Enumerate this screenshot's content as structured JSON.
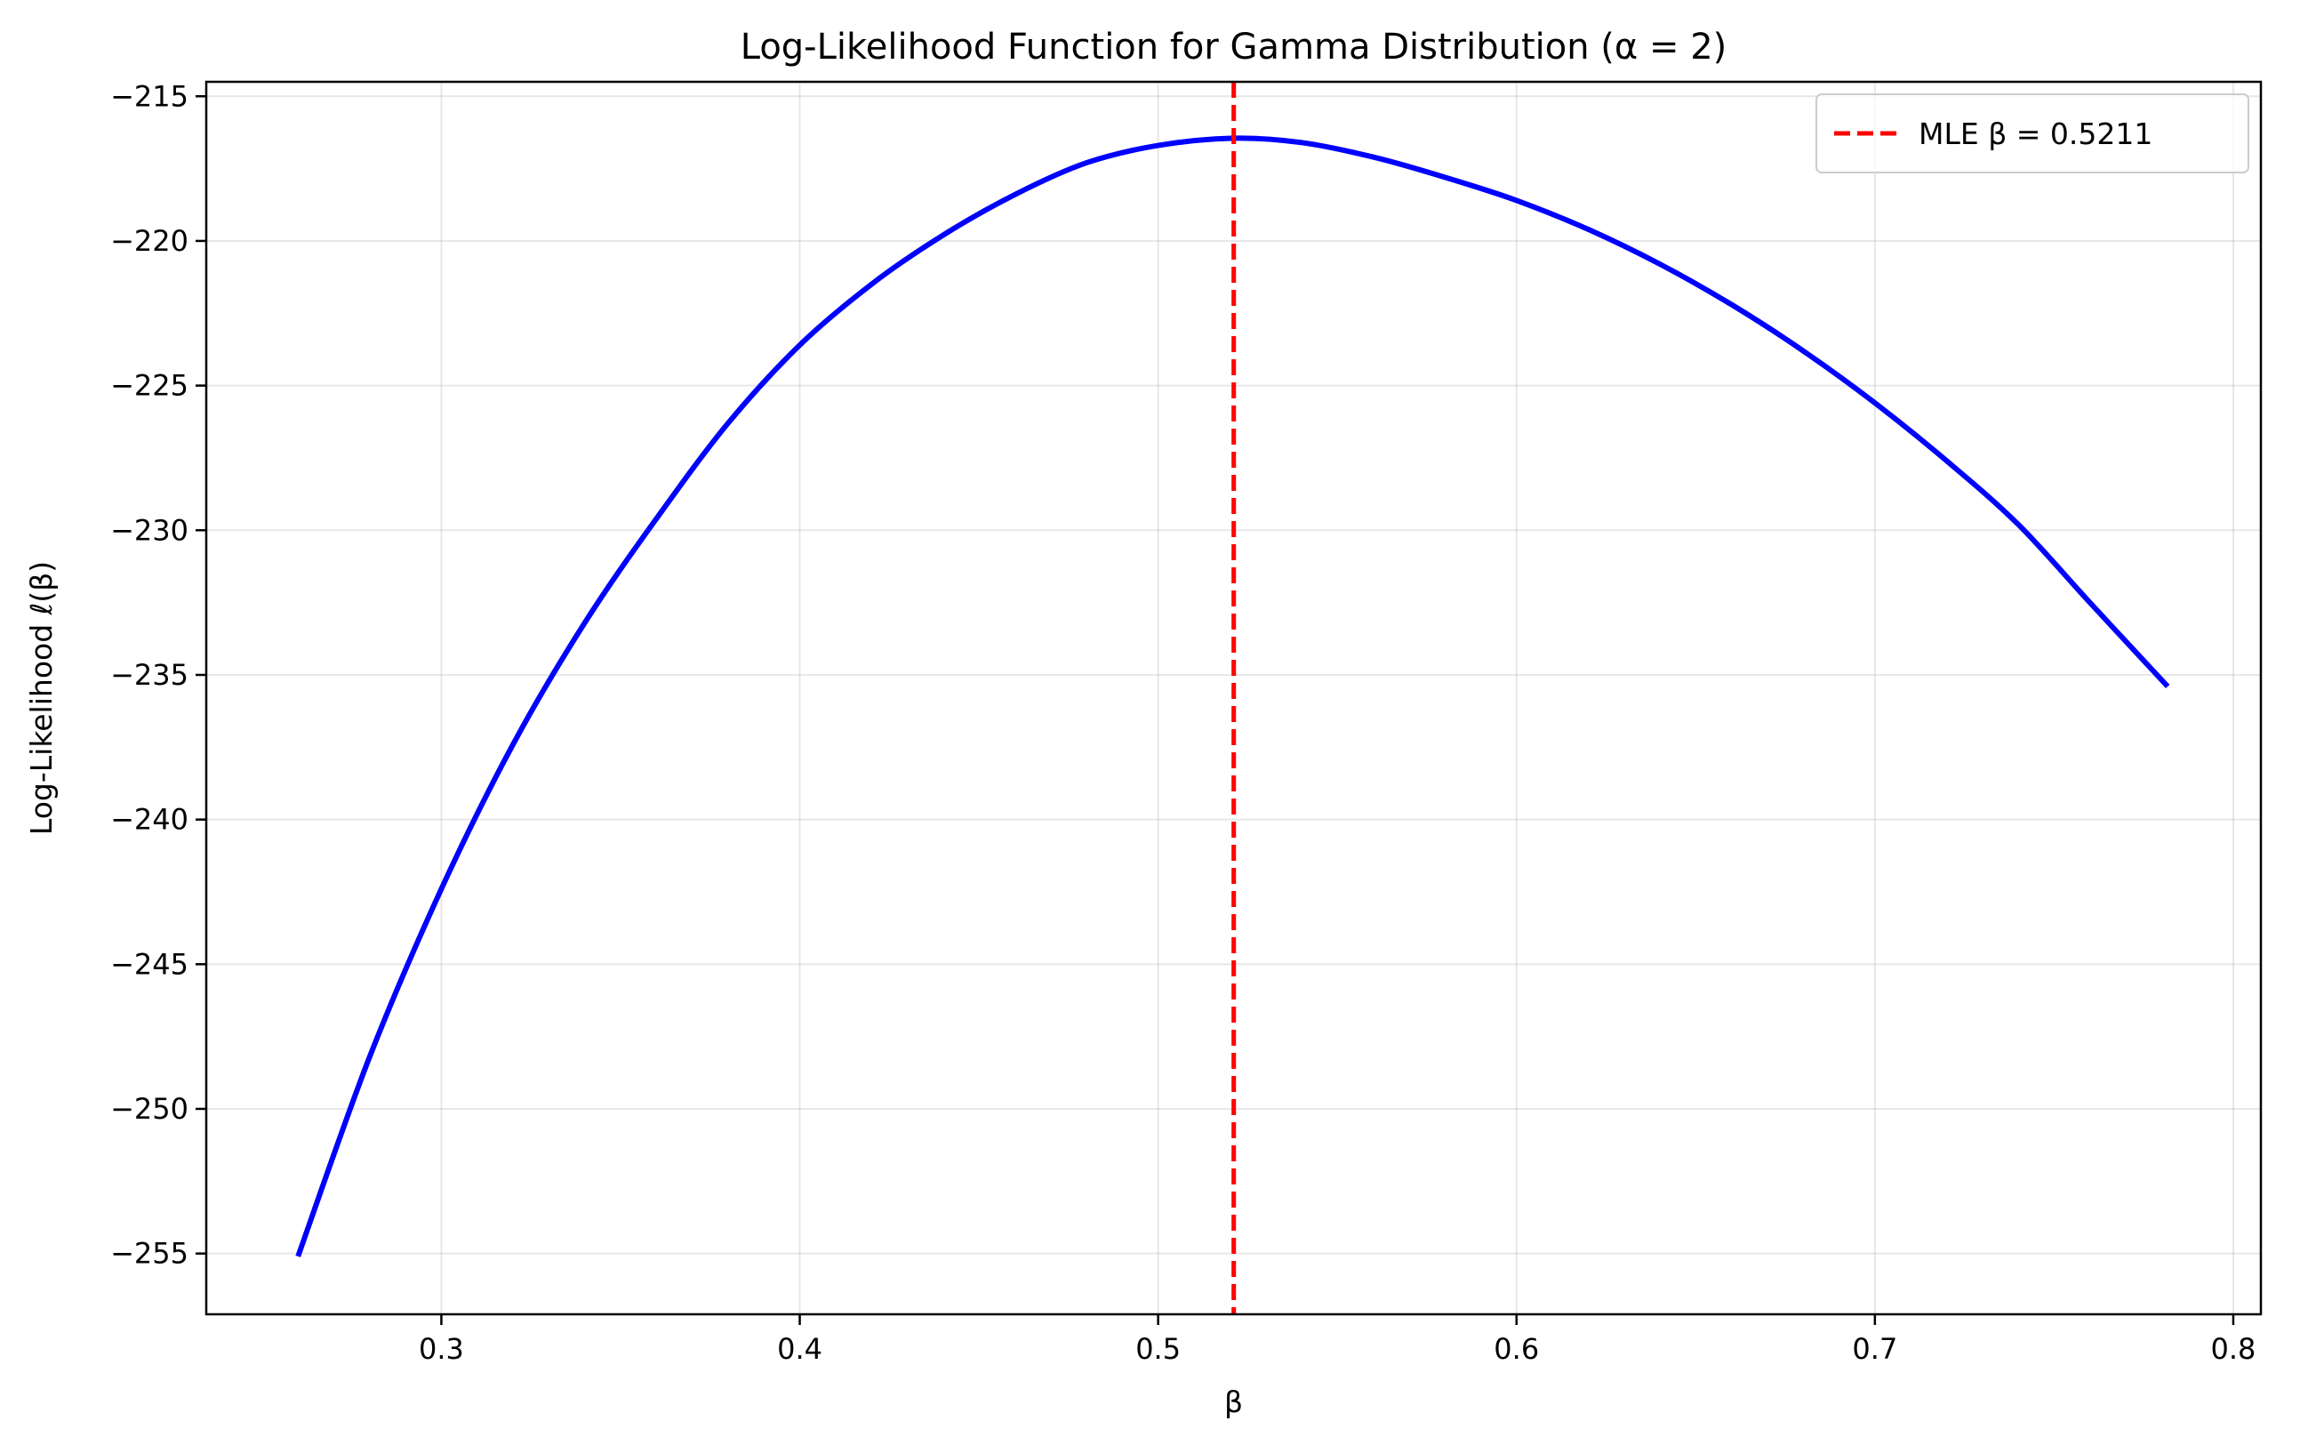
{
  "chart_data": {
    "type": "line",
    "title": "Log-Likelihood Function for Gamma Distribution (α = 2)",
    "xlabel": "β",
    "ylabel": "Log-Likelihood ℓ(β)",
    "xlim": [
      0.2344,
      0.8077
    ],
    "ylim": [
      -257.1,
      -214.5
    ],
    "x_ticks": [
      0.3,
      0.4,
      0.5,
      0.6,
      0.7,
      0.8
    ],
    "x_tick_labels": [
      "0.3",
      "0.4",
      "0.5",
      "0.6",
      "0.7",
      "0.8"
    ],
    "y_ticks": [
      -215,
      -220,
      -225,
      -230,
      -235,
      -240,
      -245,
      -250,
      -255
    ],
    "y_tick_labels": [
      "−215",
      "−220",
      "−225",
      "−230",
      "−235",
      "−240",
      "−245",
      "−250",
      "−255"
    ],
    "grid": true,
    "legend_position": "upper-right",
    "series": [
      {
        "name": "",
        "color": "#0000ff",
        "style": "solid",
        "x": [
          0.26,
          0.28,
          0.3,
          0.32,
          0.34,
          0.36,
          0.38,
          0.4,
          0.42,
          0.44,
          0.46,
          0.48,
          0.5,
          0.5211,
          0.54,
          0.56,
          0.58,
          0.6,
          0.62,
          0.64,
          0.66,
          0.68,
          0.7,
          0.72,
          0.74,
          0.76,
          0.7817
        ],
        "y": [
          -255.1,
          -248.2,
          -242.4,
          -237.4,
          -233.2,
          -229.6,
          -226.3,
          -223.6,
          -221.5,
          -219.8,
          -218.4,
          -217.3,
          -216.7,
          -216.45,
          -216.6,
          -217.1,
          -217.8,
          -218.6,
          -219.6,
          -220.8,
          -222.2,
          -223.8,
          -225.6,
          -227.6,
          -229.8,
          -232.5,
          -235.4
        ]
      },
      {
        "name": "MLE β = 0.5211",
        "color": "#ff0000",
        "style": "dashed",
        "vline_x": 0.5211
      }
    ]
  }
}
